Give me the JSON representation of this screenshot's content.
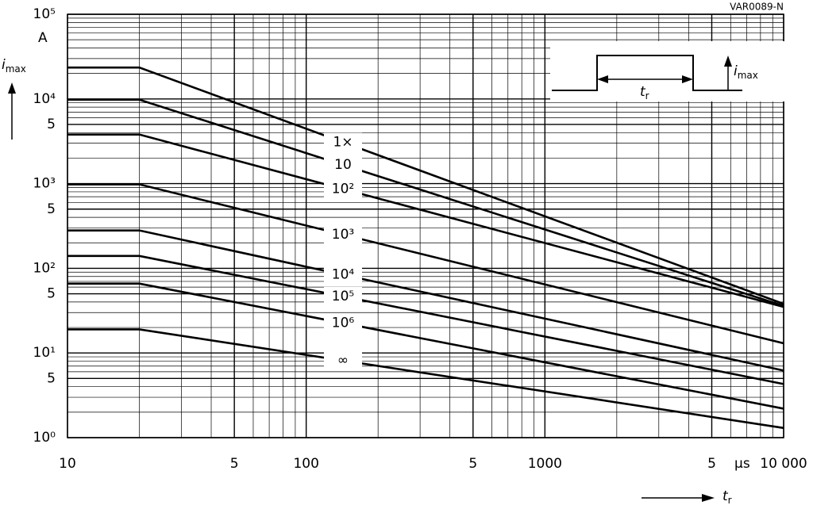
{
  "chart_data": {
    "type": "line",
    "code": "VAR0089-N",
    "x_label": {
      "main": "t",
      "sub": "r"
    },
    "y_label": {
      "main": "i",
      "sub": "max"
    },
    "y_unit": "A",
    "x_unit": "µs",
    "log_x": true,
    "log_y": true,
    "grid": true,
    "color": "#000000",
    "x": [
      10,
      20,
      10000
    ],
    "series": [
      {
        "name": "1×",
        "values": [
          23500,
          23500,
          38
        ]
      },
      {
        "name": "10",
        "values": [
          9800,
          9800,
          36
        ]
      },
      {
        "name": "10²",
        "values": [
          3800,
          3800,
          35
        ]
      },
      {
        "name": "10³",
        "values": [
          980,
          980,
          13
        ]
      },
      {
        "name": "10⁴",
        "values": [
          280,
          280,
          6.2
        ]
      },
      {
        "name": "10⁵",
        "values": [
          140,
          140,
          4.3
        ]
      },
      {
        "name": "10⁶",
        "values": [
          66,
          66,
          2.2
        ]
      },
      {
        "name": "∞",
        "values": [
          19,
          19,
          1.3
        ]
      }
    ],
    "xlim": [
      10,
      10000
    ],
    "ylim": [
      1,
      100000
    ],
    "xticks": [
      10,
      {
        "value": 50,
        "label": "5"
      },
      100,
      {
        "value": 500,
        "label": "5"
      },
      1000,
      {
        "value": 5000,
        "label": "5"
      },
      {
        "value": 10000,
        "label": "10 000"
      }
    ],
    "yticks": [
      {
        "value": 1,
        "label": "10⁰"
      },
      {
        "value": 5,
        "label": "5"
      },
      {
        "value": 10,
        "label": "10¹"
      },
      {
        "value": 50,
        "label": "5"
      },
      {
        "value": 100,
        "label": "10²"
      },
      {
        "value": 500,
        "label": "5"
      },
      {
        "value": 1000,
        "label": "10³"
      },
      {
        "value": 5000,
        "label": "5"
      },
      {
        "value": 10000,
        "label": "10⁴"
      },
      {
        "value": 100000,
        "label": "10⁵"
      }
    ],
    "inset": {
      "duration_label": {
        "main": "t",
        "sub": "r"
      },
      "amplitude_label": {
        "main": "i",
        "sub": "max"
      }
    }
  }
}
